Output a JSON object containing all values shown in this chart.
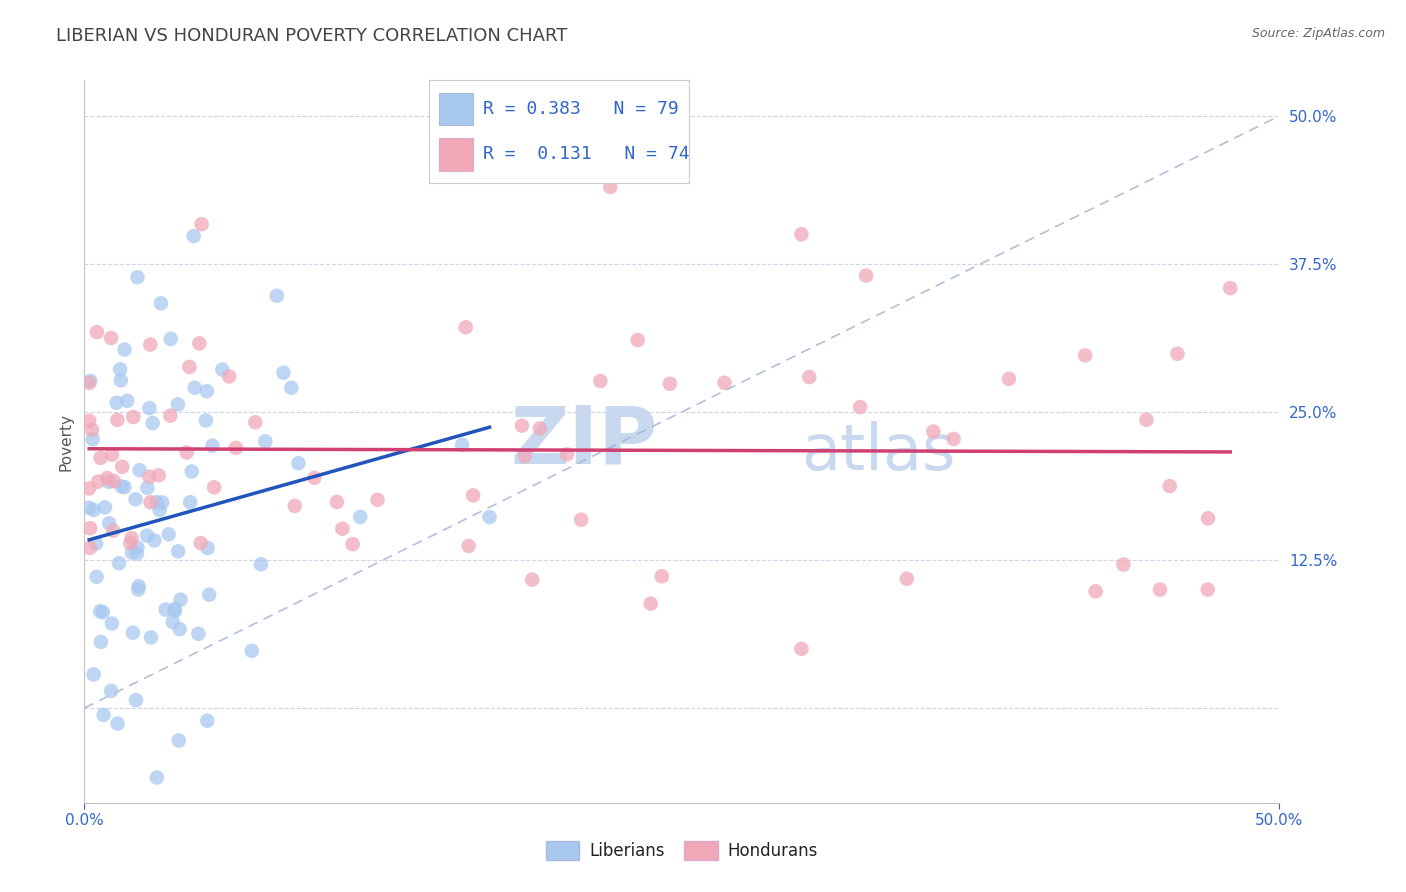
{
  "title": "LIBERIAN VS HONDURAN POVERTY CORRELATION CHART",
  "source_text": "Source: ZipAtlas.com",
  "ylabel": "Poverty",
  "ytick_labels": [
    "",
    "12.5%",
    "25.0%",
    "37.5%",
    "50.0%"
  ],
  "ytick_values": [
    0.0,
    0.125,
    0.25,
    0.375,
    0.5
  ],
  "xmin": 0.0,
  "xmax": 0.5,
  "ymin": -0.08,
  "ymax": 0.53,
  "liberian_R": 0.383,
  "liberian_N": 79,
  "honduran_R": 0.131,
  "honduran_N": 74,
  "liberian_color": "#a8c8f0",
  "honduran_color": "#f0a8b8",
  "liberian_line_color": "#2255bb",
  "honduran_line_color": "#d04070",
  "ref_line_color": "#a0b0d0",
  "background_color": "#ffffff",
  "watermark_zip": "ZIP",
  "watermark_atlas": "atlas",
  "watermark_color_zip": "#c8d8ee",
  "watermark_color_atlas": "#c8d8ee",
  "title_fontsize": 13,
  "axis_label_fontsize": 11,
  "tick_color": "#3366cc",
  "grid_color": "#d0d4e8",
  "spine_color": "#c0c0c0"
}
